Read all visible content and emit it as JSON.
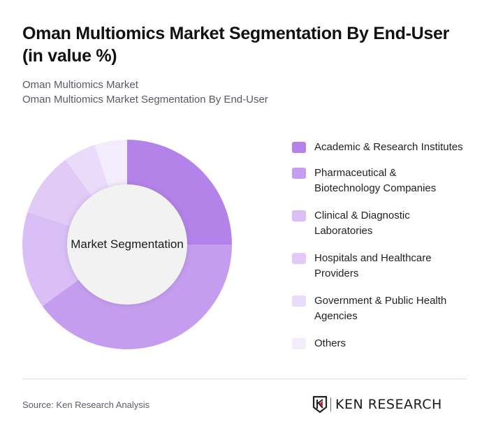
{
  "header": {
    "title": "Oman Multiomics Market Segmentation By End-User (in value %)",
    "subtitle_1": "Oman Multiomics Market",
    "subtitle_2": "Oman Multiomics Market Segmentation By End-User"
  },
  "chart": {
    "center_label": "Market Segmentation"
  },
  "legend": [
    {
      "label": "Academic & Research Institutes",
      "color": "#b483e9"
    },
    {
      "label": "Pharmaceutical & Biotechnology Companies",
      "color": "#c59dee"
    },
    {
      "label": "Clinical & Diagnostic Laboratories",
      "color": "#d9bff5"
    },
    {
      "label": "Hospitals and Healthcare Providers",
      "color": "#e1cbf6"
    },
    {
      "label": "Government & Public Health Agencies",
      "color": "#eadbfa"
    },
    {
      "label": "Others",
      "color": "#f3ecfc"
    }
  ],
  "footer": {
    "source": "Source: Ken Research Analysis",
    "logo_text": "KEN RESEARCH"
  },
  "chart_data": {
    "type": "pie",
    "title": "Oman Multiomics Market Segmentation By End-User (in value %)",
    "center_label": "Market Segmentation",
    "categories": [
      "Academic & Research Institutes",
      "Pharmaceutical & Biotechnology Companies",
      "Clinical & Diagnostic Laboratories",
      "Hospitals and Healthcare Providers",
      "Government & Public Health Agencies",
      "Others"
    ],
    "values": [
      25,
      40,
      15,
      10,
      5,
      5
    ],
    "colors": [
      "#b483e9",
      "#c59dee",
      "#d9bff5",
      "#e1cbf6",
      "#eadbfa",
      "#f3ecfc"
    ],
    "donut": true,
    "legend_position": "right"
  }
}
